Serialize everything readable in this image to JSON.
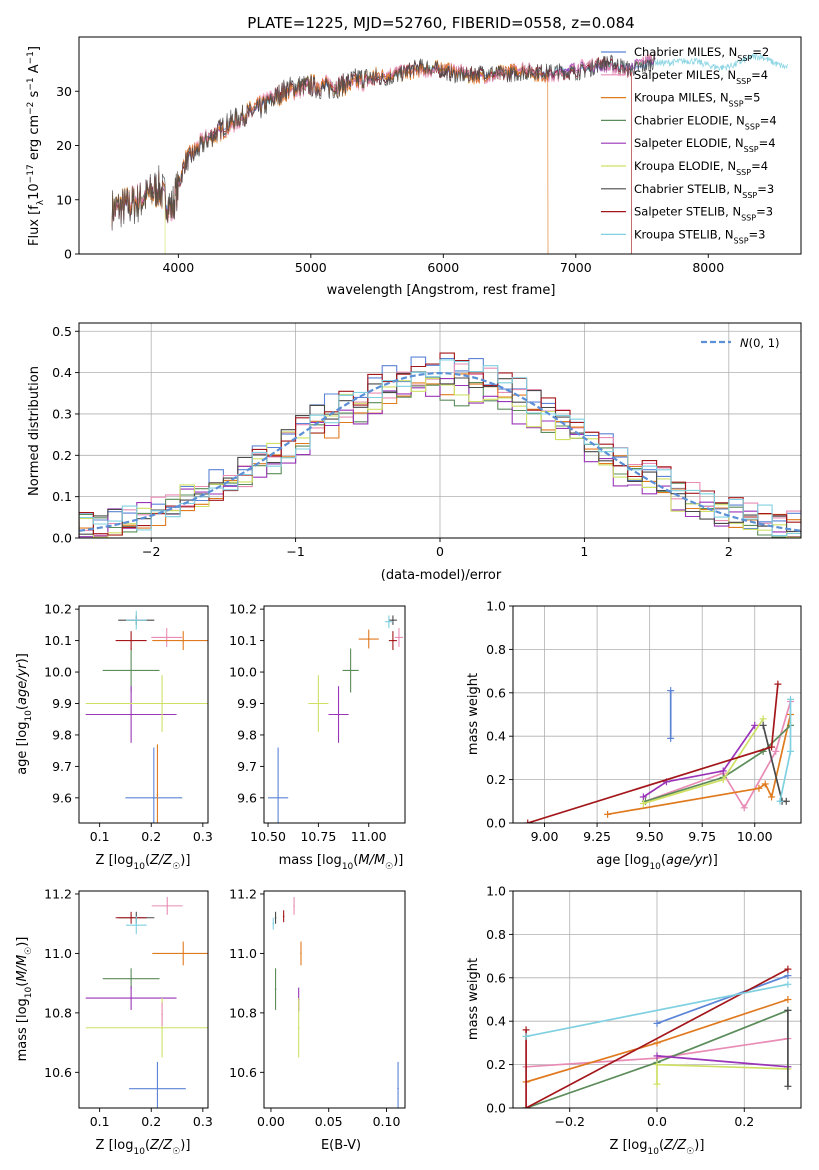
{
  "figure": {
    "title": "PLATE=1225, MJD=52760, FIBERID=0558, z=0.084"
  },
  "colors": {
    "Chabrier MILES": "#5b84d6",
    "Salpeter MILES": "#e98cb5",
    "Kroupa MILES": "#e07a1f",
    "Chabrier ELODIE": "#5b8c5a",
    "Salpeter ELODIE": "#9a34b8",
    "Kroupa ELODIE": "#cfe065",
    "Chabrier STELIB": "#4a4a4a",
    "Salpeter STELIB": "#a3171b",
    "Kroupa STELIB": "#7fd0e0"
  },
  "chart_data": [
    {
      "id": "spectrum",
      "type": "line",
      "title": "PLATE=1225, MJD=52760, FIBERID=0558, z=0.084",
      "xlabel": "wavelength [Angstrom, rest frame]",
      "ylabel": "Flux [f_λ 10^-17 erg cm^-2 s^-1 A^-1]",
      "xlim": [
        3250,
        8700
      ],
      "ylim": [
        0,
        40
      ],
      "xticks": [
        4000,
        5000,
        6000,
        7000,
        8000
      ],
      "yticks": [
        0,
        10,
        20,
        30
      ],
      "grid": false,
      "legend_position": "top-right",
      "data_envelope": {
        "x": [
          3500,
          3700,
          3850,
          3950,
          4050,
          4200,
          4400,
          4600,
          4800,
          5000,
          5200,
          5400,
          5600,
          5800,
          6000,
          6200,
          6400,
          6600,
          6800,
          7000,
          7200,
          7400,
          7600,
          7800,
          8000,
          8200,
          8400,
          8600
        ],
        "y": [
          8,
          10,
          12,
          8,
          17,
          21,
          24,
          27,
          30,
          31,
          31,
          32,
          33,
          34,
          34,
          33,
          33,
          34,
          33,
          34,
          35,
          34,
          36,
          35,
          35,
          35,
          36,
          35
        ]
      },
      "series": [
        {
          "name": "Chabrier MILES",
          "nssp": "2"
        },
        {
          "name": "Salpeter MILES",
          "nssp": "4"
        },
        {
          "name": "Kroupa MILES",
          "nssp": "5"
        },
        {
          "name": "Chabrier ELODIE",
          "nssp": "4"
        },
        {
          "name": "Salpeter ELODIE",
          "nssp": "4"
        },
        {
          "name": "Kroupa ELODIE",
          "nssp": "4"
        },
        {
          "name": "Chabrier STELIB",
          "nssp": "3"
        },
        {
          "name": "Salpeter STELIB",
          "nssp": "3"
        },
        {
          "name": "Kroupa STELIB",
          "nssp": "3"
        }
      ],
      "cutoffs": [
        {
          "name": "Kroupa ELODIE",
          "x": 3900
        },
        {
          "name": "Kroupa MILES",
          "x": 6790
        },
        {
          "name": "Salpeter STELIB",
          "x": 7420
        }
      ]
    },
    {
      "id": "residuals",
      "type": "area",
      "xlabel": "(data-model)/error",
      "ylabel": "Normed distribution",
      "xlim": [
        -2.5,
        2.5
      ],
      "ylim": [
        0,
        0.52
      ],
      "xticks": [
        -2,
        -1,
        0,
        1,
        2
      ],
      "yticks": [
        0.0,
        0.1,
        0.2,
        0.3,
        0.4,
        0.5
      ],
      "grid": true,
      "legend_position": "top-right",
      "reference_curve": {
        "name": "N(0,1)",
        "mean": 0,
        "sigma": 1
      },
      "bin_width": 0.1
    },
    {
      "id": "age_vs_Z",
      "type": "scatter",
      "xlabel": "Z [log10(Z/Z☉)]",
      "ylabel": "age [log10(age/yr)]",
      "xlim": [
        0.06,
        0.31
      ],
      "ylim": [
        9.52,
        10.21
      ],
      "xticks": [
        0.1,
        0.2,
        0.3
      ],
      "yticks": [
        9.6,
        9.7,
        9.8,
        9.9,
        10.0,
        10.1,
        10.2
      ],
      "grid": false,
      "points": [
        {
          "name": "Chabrier MILES",
          "x": 0.205,
          "y": 9.6,
          "xerr": 0.055,
          "yerr": 0.16
        },
        {
          "name": "Salpeter MILES",
          "x": 0.23,
          "y": 10.11,
          "xerr": 0.03,
          "yerr": 0.03
        },
        {
          "name": "Kroupa MILES",
          "x": 0.262,
          "y": 10.1,
          "xerr": 0.06,
          "yerr": 0.03
        },
        {
          "name": "Chabrier ELODIE",
          "x": 0.161,
          "y": 10.005,
          "xerr": 0.055,
          "yerr": 0.07
        },
        {
          "name": "Salpeter ELODIE",
          "x": 0.161,
          "y": 9.865,
          "xerr": 0.088,
          "yerr": 0.09
        },
        {
          "name": "Kroupa ELODIE",
          "x": 0.221,
          "y": 9.9,
          "xerr": 0.148,
          "yerr": 0.09
        },
        {
          "name": "Chabrier STELIB",
          "x": 0.171,
          "y": 10.165,
          "xerr": 0.035,
          "yerr": 0.015
        },
        {
          "name": "Salpeter STELIB",
          "x": 0.161,
          "y": 10.1,
          "xerr": 0.03,
          "yerr": 0.03
        },
        {
          "name": "Kroupa STELIB",
          "x": 0.171,
          "y": 10.165,
          "xerr": 0.02,
          "yerr": 0.03
        },
        {
          "name": "Kroupa MILES",
          "x": 0.212,
          "y": 9.61,
          "xerr": 0,
          "yerr": 0.16
        }
      ]
    },
    {
      "id": "age_vs_mass",
      "type": "scatter",
      "xlabel": "mass [log10(M/M☉)]",
      "ylabel": "",
      "xlim": [
        10.48,
        11.18
      ],
      "ylim": [
        9.52,
        10.21
      ],
      "xticks": [
        10.5,
        10.75,
        11.0
      ],
      "yticks": [
        9.6,
        9.7,
        9.8,
        9.9,
        10.0,
        10.1,
        10.2
      ],
      "grid": false,
      "points": [
        {
          "name": "Chabrier MILES",
          "x": 10.55,
          "y": 9.6,
          "xerr": 0.05,
          "yerr": 0.16
        },
        {
          "name": "Salpeter MILES",
          "x": 11.15,
          "y": 10.11,
          "xerr": 0.02,
          "yerr": 0.03
        },
        {
          "name": "Kroupa MILES",
          "x": 11.0,
          "y": 10.105,
          "xerr": 0.05,
          "yerr": 0.03
        },
        {
          "name": "Chabrier ELODIE",
          "x": 10.91,
          "y": 10.005,
          "xerr": 0.04,
          "yerr": 0.07
        },
        {
          "name": "Salpeter ELODIE",
          "x": 10.85,
          "y": 9.865,
          "xerr": 0.05,
          "yerr": 0.09
        },
        {
          "name": "Kroupa ELODIE",
          "x": 10.75,
          "y": 9.9,
          "xerr": 0.05,
          "yerr": 0.09
        },
        {
          "name": "Chabrier STELIB",
          "x": 11.12,
          "y": 10.165,
          "xerr": 0.02,
          "yerr": 0.015
        },
        {
          "name": "Salpeter STELIB",
          "x": 11.12,
          "y": 10.1,
          "xerr": 0.02,
          "yerr": 0.03
        },
        {
          "name": "Kroupa STELIB",
          "x": 11.1,
          "y": 10.16,
          "xerr": 0.02,
          "yerr": 0.02
        }
      ]
    },
    {
      "id": "weight_vs_age",
      "type": "line",
      "xlabel": "age [log10(age/yr)]",
      "ylabel": "mass weight",
      "xlim": [
        8.85,
        10.22
      ],
      "ylim": [
        0,
        1
      ],
      "xticks": [
        9.0,
        9.25,
        9.5,
        9.75,
        10.0
      ],
      "yticks": [
        0.0,
        0.2,
        0.4,
        0.6,
        0.8,
        1.0
      ],
      "grid": true,
      "series": [
        {
          "name": "Chabrier MILES",
          "x": [
            9.6,
            9.6
          ],
          "y": [
            0.39,
            0.61
          ]
        },
        {
          "name": "Salpeter MILES",
          "x": [
            9.48,
            9.85,
            9.95,
            10.1,
            10.17
          ],
          "y": [
            0.1,
            0.23,
            0.07,
            0.33,
            0.56
          ]
        },
        {
          "name": "Kroupa MILES",
          "x": [
            9.3,
            10.02,
            10.05,
            10.08,
            10.17
          ],
          "y": [
            0.04,
            0.16,
            0.18,
            0.12,
            0.5
          ]
        },
        {
          "name": "Chabrier ELODIE",
          "x": [
            9.48,
            9.85,
            10.04,
            10.17
          ],
          "y": [
            0.1,
            0.21,
            0.33,
            0.45
          ]
        },
        {
          "name": "Salpeter ELODIE",
          "x": [
            9.47,
            9.58,
            9.85,
            10.0
          ],
          "y": [
            0.12,
            0.19,
            0.24,
            0.45
          ]
        },
        {
          "name": "Kroupa ELODIE",
          "x": [
            9.47,
            9.85,
            10.04
          ],
          "y": [
            0.09,
            0.2,
            0.48
          ]
        },
        {
          "name": "Chabrier STELIB",
          "x": [
            10.04,
            10.13,
            10.15
          ],
          "y": [
            0.45,
            0.1,
            0.1
          ]
        },
        {
          "name": "Salpeter STELIB",
          "x": [
            8.92,
            10.08,
            10.11
          ],
          "y": [
            0.0,
            0.35,
            0.64
          ]
        },
        {
          "name": "Kroupa STELIB",
          "x": [
            10.12,
            10.17,
            10.17
          ],
          "y": [
            0.1,
            0.33,
            0.57
          ]
        }
      ]
    },
    {
      "id": "mass_vs_Z",
      "type": "scatter",
      "xlabel": "Z [log10(Z/Z☉)]",
      "ylabel": "mass [log10(M/M☉)]",
      "xlim": [
        0.06,
        0.31
      ],
      "ylim": [
        10.48,
        11.21
      ],
      "xticks": [
        0.1,
        0.2,
        0.3
      ],
      "yticks": [
        10.6,
        10.8,
        11.0,
        11.2
      ],
      "grid": false,
      "points": [
        {
          "name": "Chabrier MILES",
          "x": 0.212,
          "y": 10.545,
          "xerr": 0.055,
          "yerr": 0.09
        },
        {
          "name": "Salpeter MILES",
          "x": 0.231,
          "y": 11.16,
          "xerr": 0.03,
          "yerr": 0.03
        },
        {
          "name": "Kroupa MILES",
          "x": 0.262,
          "y": 11.0,
          "xerr": 0.06,
          "yerr": 0.04
        },
        {
          "name": "Chabrier ELODIE",
          "x": 0.161,
          "y": 10.915,
          "xerr": 0.055,
          "yerr": 0.035
        },
        {
          "name": "Salpeter ELODIE",
          "x": 0.161,
          "y": 10.85,
          "xerr": 0.088,
          "yerr": 0.04
        },
        {
          "name": "Kroupa ELODIE",
          "x": 0.221,
          "y": 10.75,
          "xerr": 0.148,
          "yerr": 0.1
        },
        {
          "name": "Chabrier STELIB",
          "x": 0.171,
          "y": 11.12,
          "xerr": 0.035,
          "yerr": 0.02
        },
        {
          "name": "Salpeter STELIB",
          "x": 0.161,
          "y": 11.12,
          "xerr": 0.03,
          "yerr": 0.02
        },
        {
          "name": "Kroupa STELIB",
          "x": 0.171,
          "y": 11.095,
          "xerr": 0.02,
          "yerr": 0.03
        },
        {
          "name": "Salpeter MILES",
          "x": 0.221,
          "y": 10.795,
          "xerr": 0,
          "yerr": 0.04
        }
      ]
    },
    {
      "id": "mass_vs_ebv",
      "type": "scatter",
      "xlabel": "E(B-V)",
      "ylabel": "",
      "xlim": [
        -0.006,
        0.116
      ],
      "ylim": [
        10.48,
        11.21
      ],
      "xticks": [
        0.0,
        0.05,
        0.1
      ],
      "yticks": [
        10.6,
        10.8,
        11.0,
        11.2
      ],
      "grid": false,
      "points": [
        {
          "name": "Chabrier MILES",
          "x": 0.11,
          "y": 10.545,
          "xerr": 0,
          "yerr": 0.09
        },
        {
          "name": "Salpeter MILES",
          "x": 0.02,
          "y": 11.16,
          "xerr": 0,
          "yerr": 0.03
        },
        {
          "name": "Kroupa MILES",
          "x": 0.026,
          "y": 11.0,
          "xerr": 0,
          "yerr": 0.04
        },
        {
          "name": "Chabrier ELODIE",
          "x": 0.004,
          "y": 10.88,
          "xerr": 0,
          "yerr": 0.07
        },
        {
          "name": "Salpeter ELODIE",
          "x": 0.024,
          "y": 10.845,
          "xerr": 0,
          "yerr": 0.04
        },
        {
          "name": "Kroupa ELODIE",
          "x": 0.024,
          "y": 10.75,
          "xerr": 0,
          "yerr": 0.1
        },
        {
          "name": "Chabrier STELIB",
          "x": 0.004,
          "y": 11.12,
          "xerr": 0,
          "yerr": 0.02
        },
        {
          "name": "Salpeter STELIB",
          "x": 0.011,
          "y": 11.125,
          "xerr": 0,
          "yerr": 0.02
        },
        {
          "name": "Kroupa STELIB",
          "x": 0.002,
          "y": 11.1,
          "xerr": 0,
          "yerr": 0.02
        }
      ]
    },
    {
      "id": "weight_vs_Z",
      "type": "line",
      "xlabel": "Z [log10(Z/Z☉)]",
      "ylabel": "mass weight",
      "xlim": [
        -0.33,
        0.33
      ],
      "ylim": [
        0,
        1
      ],
      "xticks": [
        -0.2,
        0.0,
        0.2
      ],
      "yticks": [
        0.0,
        0.2,
        0.4,
        0.6,
        0.8,
        1.0
      ],
      "grid": true,
      "series": [
        {
          "name": "Chabrier MILES",
          "x": [
            0.0,
            0.3
          ],
          "y": [
            0.39,
            0.61
          ]
        },
        {
          "name": "Salpeter MILES",
          "x": [
            -0.3,
            0.0,
            0.3
          ],
          "y": [
            0.19,
            0.23,
            0.32
          ]
        },
        {
          "name": "Kroupa MILES",
          "x": [
            -0.3,
            0.0,
            0.3
          ],
          "y": [
            0.12,
            0.3,
            0.5
          ]
        },
        {
          "name": "Chabrier ELODIE",
          "x": [
            -0.3,
            0.0,
            0.3
          ],
          "y": [
            0.0,
            0.21,
            0.45
          ]
        },
        {
          "name": "Salpeter ELODIE",
          "x": [
            0.0,
            0.3
          ],
          "y": [
            0.24,
            0.19
          ]
        },
        {
          "name": "Kroupa ELODIE",
          "x": [
            0.0,
            0.0,
            0.3
          ],
          "y": [
            0.11,
            0.2,
            0.18
          ]
        },
        {
          "name": "Chabrier STELIB",
          "x": [
            0.3,
            0.3
          ],
          "y": [
            0.1,
            0.45
          ]
        },
        {
          "name": "Salpeter STELIB",
          "x": [
            -0.3,
            -0.3,
            0.3
          ],
          "y": [
            0.36,
            0.0,
            0.64
          ]
        },
        {
          "name": "Kroupa STELIB",
          "x": [
            -0.3,
            0.3
          ],
          "y": [
            0.33,
            0.57
          ]
        }
      ]
    }
  ]
}
